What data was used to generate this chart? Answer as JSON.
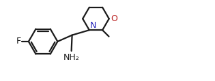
{
  "background": "#ffffff",
  "bond_color": "#1a1a1a",
  "N_color": "#2222bb",
  "O_color": "#bb2222",
  "lw": 1.6,
  "fs": 8.5,
  "figsize": [
    3.15,
    1.19
  ],
  "dpi": 100,
  "xlim": [
    0.05,
    3.1
  ],
  "ylim": [
    0.0,
    1.19
  ]
}
